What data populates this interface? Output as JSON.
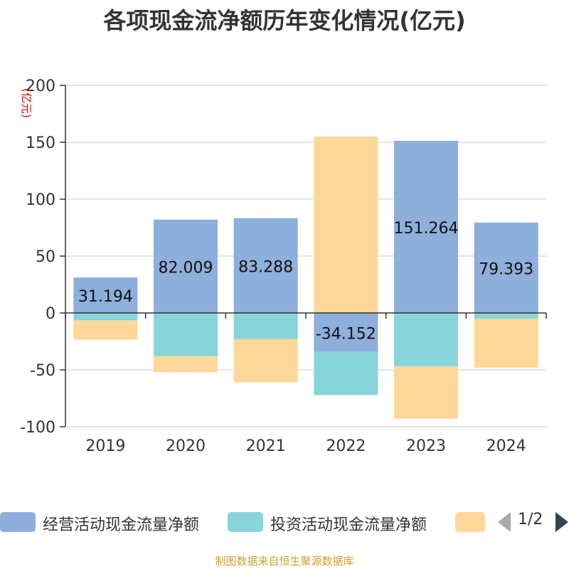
{
  "title": "各项现金流净额历年变化情况(亿元)",
  "unit_label": "(亿元)",
  "source_note": "制图数据来自恒生聚源数据库",
  "pager": {
    "text": "1/2"
  },
  "colors": {
    "operating": "#8eaedb",
    "investing": "#87d5d8",
    "financing": "#fdd898",
    "axis": "#333333",
    "grid": "#cccccc",
    "unit_label": "#cc0000"
  },
  "chart_data": {
    "type": "bar",
    "stacked": true,
    "title": "各项现金流净额历年变化情况(亿元)",
    "ylabel": "(亿元)",
    "ylim": [
      -100,
      200
    ],
    "yticks": [
      -100,
      -50,
      0,
      50,
      100,
      150,
      200
    ],
    "categories": [
      "2019",
      "2020",
      "2021",
      "2022",
      "2023",
      "2024"
    ],
    "grid": true,
    "legend_position": "bottom",
    "series": [
      {
        "name": "经营活动现金流量净额",
        "color_key": "operating",
        "values": [
          31.194,
          82.009,
          83.288,
          -34.152,
          151.264,
          79.393
        ],
        "show_labels": true
      },
      {
        "name": "投资活动现金流量净额",
        "color_key": "investing",
        "values": [
          -6.5,
          -38,
          -23,
          -38,
          -47,
          -5
        ],
        "show_labels": false
      },
      {
        "name": "",
        "color_key": "financing",
        "values": [
          -17,
          -14,
          -38,
          155,
          -46,
          -43
        ],
        "show_labels": false
      }
    ]
  }
}
